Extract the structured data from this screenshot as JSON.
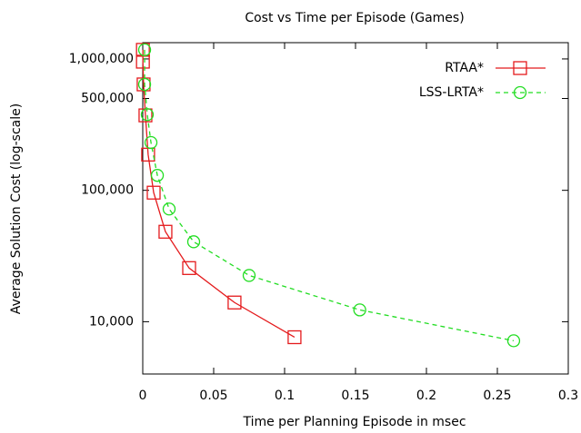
{
  "chart_data": {
    "type": "line",
    "title": "Cost vs Time per Episode (Games)",
    "xlabel": "Time per Planning Episode in msec",
    "ylabel": "Average Solution Cost (log-scale)",
    "log_y": true,
    "legend": "top-right",
    "xlim": [
      0,
      0.3
    ],
    "xticks": [
      0,
      0.05,
      0.1,
      0.15,
      0.2,
      0.25,
      0.3
    ],
    "ylim": [
      4000,
      1330000
    ],
    "yticks": [
      {
        "value": 10000,
        "label": "10,000"
      },
      {
        "value": 100000,
        "label": "100,000"
      },
      {
        "value": 500000,
        "label": "500,000"
      },
      {
        "value": 1000000,
        "label": "1,000,000"
      }
    ],
    "series": [
      {
        "name": "RTAA*",
        "color": "#e41a1c",
        "marker": "square",
        "dash": false,
        "x": [
          0.0001,
          0.0001,
          0.0006,
          0.0019,
          0.0038,
          0.0077,
          0.016,
          0.0327,
          0.0647,
          0.107
        ],
        "values": [
          1173000,
          953000,
          640000,
          372000,
          187000,
          96000,
          48400,
          25600,
          14000,
          7620
        ]
      },
      {
        "name": "LSS-LRTA*",
        "color": "#22dd22",
        "marker": "circle",
        "dash": true,
        "x": [
          0.0013,
          0.0013,
          0.0032,
          0.0058,
          0.0103,
          0.0186,
          0.0359,
          0.075,
          0.153,
          0.2615
        ],
        "values": [
          1173000,
          640000,
          377000,
          231000,
          130000,
          72100,
          40600,
          22500,
          12300,
          7160
        ]
      }
    ]
  }
}
